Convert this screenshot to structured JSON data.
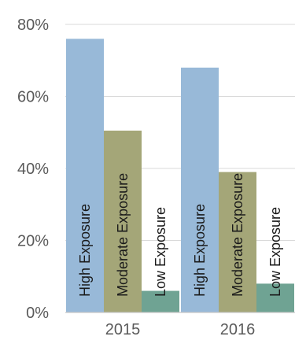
{
  "chart_data": {
    "type": "bar",
    "title": "",
    "xlabel": "",
    "ylabel": "",
    "categories": [
      "2015",
      "2016"
    ],
    "series": [
      {
        "name": "High Exposure",
        "values": [
          0.76,
          0.68
        ],
        "color": "#98b9d8"
      },
      {
        "name": "Moderate Exposure",
        "values": [
          0.505,
          0.39
        ],
        "color": "#a4a678"
      },
      {
        "name": "Low Exposure",
        "values": [
          0.06,
          0.08
        ],
        "color": "#6fa393"
      }
    ],
    "ylim": [
      0,
      0.8
    ],
    "yticks": [
      0,
      0.2,
      0.4,
      0.6,
      0.8
    ],
    "ytick_labels": [
      "0%",
      "20%",
      "40%",
      "60%",
      "80%"
    ],
    "grid": true,
    "legend": "none",
    "bar_labels": "series name, rotated vertical inside bar"
  }
}
